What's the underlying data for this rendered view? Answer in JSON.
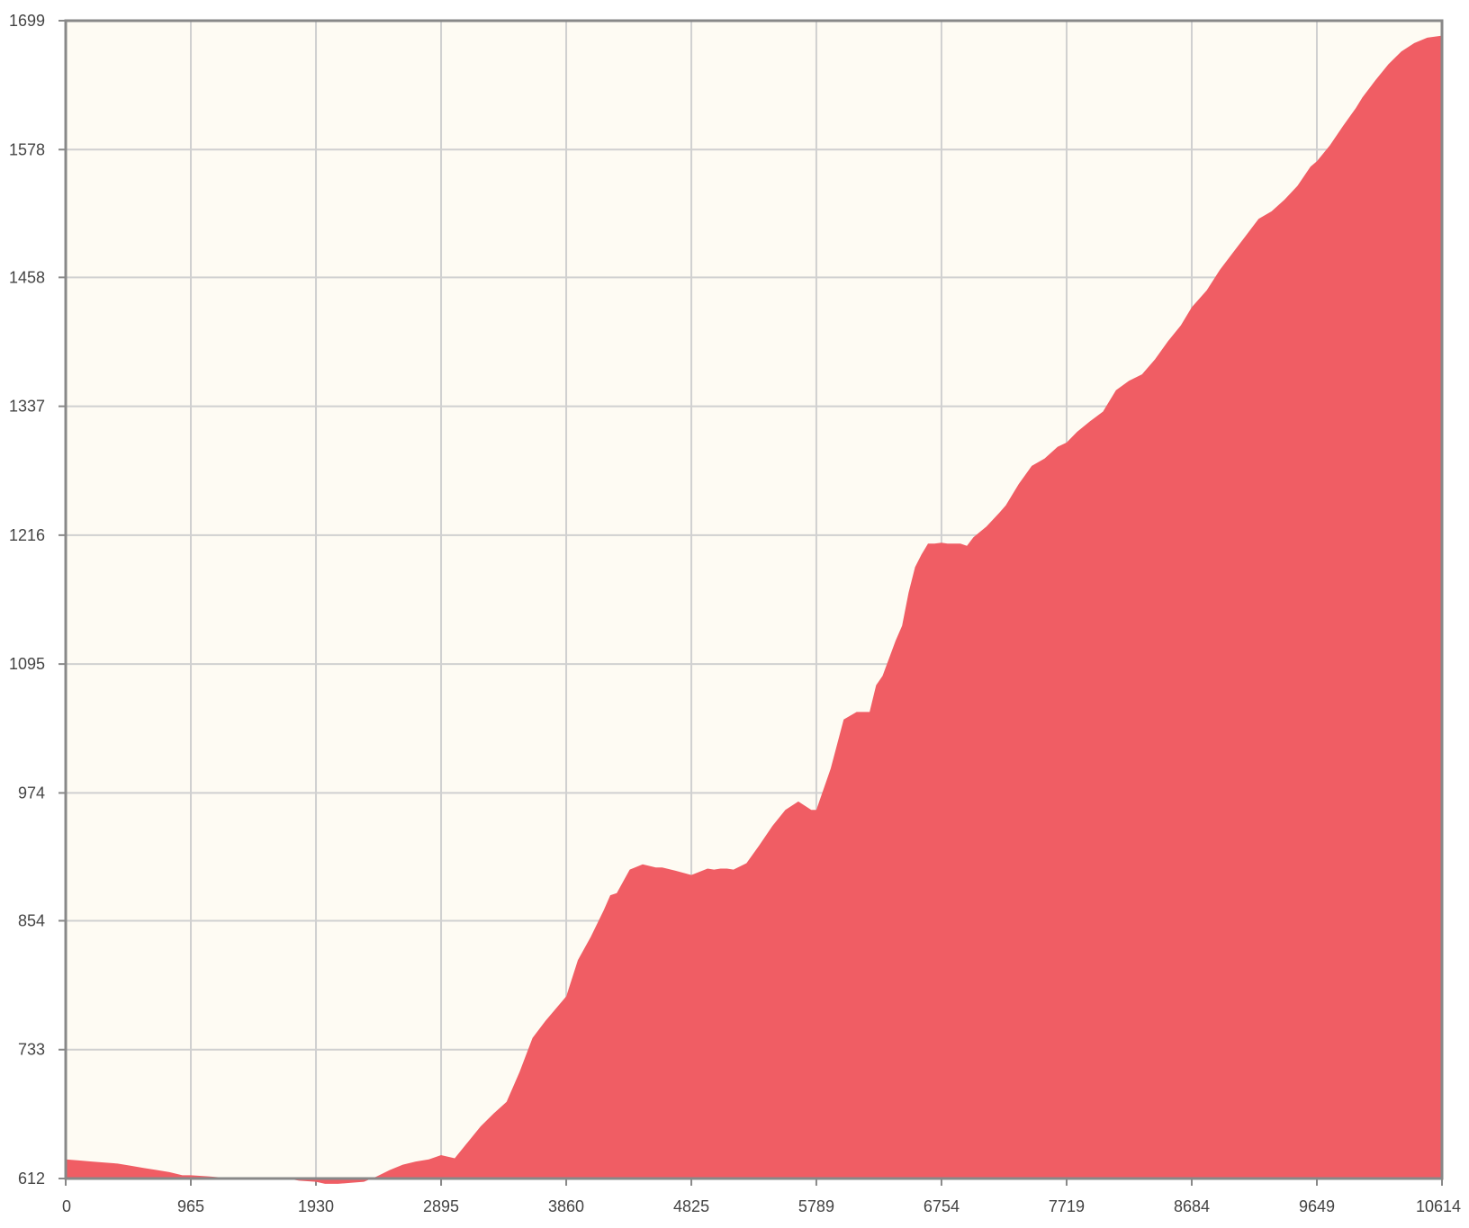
{
  "colors": {
    "plot_background": "#fefbf3",
    "area_fill": "#f05d64",
    "grid": "#d0d0d0",
    "frame": "#888888",
    "tick_text": "#444444"
  },
  "chart_data": {
    "type": "area",
    "title": "",
    "xlabel": "",
    "ylabel": "",
    "grid": true,
    "legend": "none",
    "xlim": [
      0,
      10614
    ],
    "ylim": [
      612,
      1699
    ],
    "x_ticks": [
      "0",
      "965",
      "1930",
      "2895",
      "3860",
      "4825",
      "5789",
      "6754",
      "7719",
      "8684",
      "9649",
      "10614"
    ],
    "y_ticks": [
      "612",
      "733",
      "854",
      "974",
      "1095",
      "1216",
      "1337",
      "1458",
      "1578",
      "1699"
    ],
    "series": [
      {
        "x": [
          0,
          100,
          200,
          300,
          400,
          500,
          600,
          700,
          800,
          900,
          965,
          1100,
          1300,
          1500,
          1600,
          1700,
          1800,
          1930,
          2000,
          2100,
          2200,
          2300,
          2400,
          2500,
          2600,
          2700,
          2800,
          2895,
          3000,
          3100,
          3200,
          3300,
          3400,
          3500,
          3600,
          3700,
          3860,
          3950,
          4050,
          4150,
          4200,
          4250,
          4350,
          4450,
          4550,
          4600,
          4700,
          4825,
          4950,
          5000,
          5050,
          5100,
          5150,
          5250,
          5350,
          5450,
          5550,
          5650,
          5750,
          5789,
          5900,
          6000,
          6100,
          6200,
          6250,
          6300,
          6400,
          6450,
          6500,
          6550,
          6600,
          6650,
          6700,
          6754,
          6800,
          6850,
          6900,
          6950,
          7000,
          7100,
          7200,
          7250,
          7350,
          7450,
          7550,
          7650,
          7719,
          7800,
          7900,
          8000,
          8100,
          8200,
          8300,
          8400,
          8500,
          8600,
          8684,
          8800,
          8900,
          9000,
          9100,
          9200,
          9300,
          9400,
          9500,
          9600,
          9649,
          9750,
          9850,
          9950,
          10000,
          10100,
          10200,
          10300,
          10400,
          10500,
          10614
        ],
        "values": [
          630,
          629,
          628,
          627,
          626,
          624,
          622,
          620,
          618,
          615,
          615,
          614,
          612,
          611,
          611,
          612,
          610,
          609,
          607,
          607,
          608,
          609,
          614,
          620,
          625,
          628,
          630,
          634,
          631,
          646,
          661,
          673,
          684,
          712,
          744,
          760,
          783,
          817,
          839,
          864,
          878,
          880,
          902,
          907,
          904,
          904,
          901,
          897,
          903,
          902,
          903,
          903,
          902,
          908,
          925,
          943,
          958,
          966,
          958,
          958,
          997,
          1043,
          1050,
          1050,
          1075,
          1084,
          1117,
          1131,
          1162,
          1186,
          1198,
          1208,
          1208,
          1209,
          1208,
          1208,
          1208,
          1206,
          1214,
          1224,
          1237,
          1244,
          1264,
          1281,
          1288,
          1299,
          1303,
          1313,
          1323,
          1332,
          1352,
          1361,
          1367,
          1381,
          1398,
          1413,
          1430,
          1446,
          1465,
          1481,
          1497,
          1513,
          1520,
          1531,
          1544,
          1562,
          1567,
          1582,
          1600,
          1617,
          1627,
          1643,
          1658,
          1670,
          1678,
          1683,
          1685
        ]
      }
    ]
  }
}
